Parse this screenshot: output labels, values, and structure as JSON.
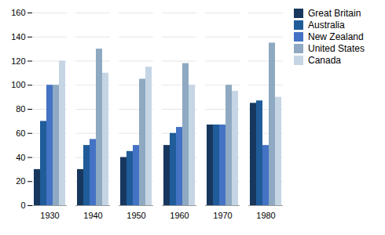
{
  "chart_data": {
    "type": "bar",
    "categories": [
      "1930",
      "1940",
      "1950",
      "1960",
      "1970",
      "1980"
    ],
    "series": [
      {
        "name": "Great Britain",
        "color": "#17375E",
        "values": [
          30,
          30,
          40,
          50,
          67,
          85
        ]
      },
      {
        "name": "Australia",
        "color": "#1F5C99",
        "values": [
          70,
          50,
          45,
          60,
          67,
          87
        ]
      },
      {
        "name": "New Zealand",
        "color": "#4472C4",
        "values": [
          100,
          55,
          50,
          65,
          67,
          50
        ]
      },
      {
        "name": "United States",
        "color": "#8EA9C1",
        "values": [
          100,
          130,
          105,
          118,
          100,
          135
        ]
      },
      {
        "name": "Canada",
        "color": "#C5D5E4",
        "values": [
          120,
          110,
          115,
          100,
          95,
          90
        ]
      }
    ],
    "ylim": [
      0,
      160
    ],
    "yticks": [
      0,
      20,
      40,
      60,
      80,
      100,
      120,
      140,
      160
    ],
    "grid": true,
    "legend": "right"
  }
}
